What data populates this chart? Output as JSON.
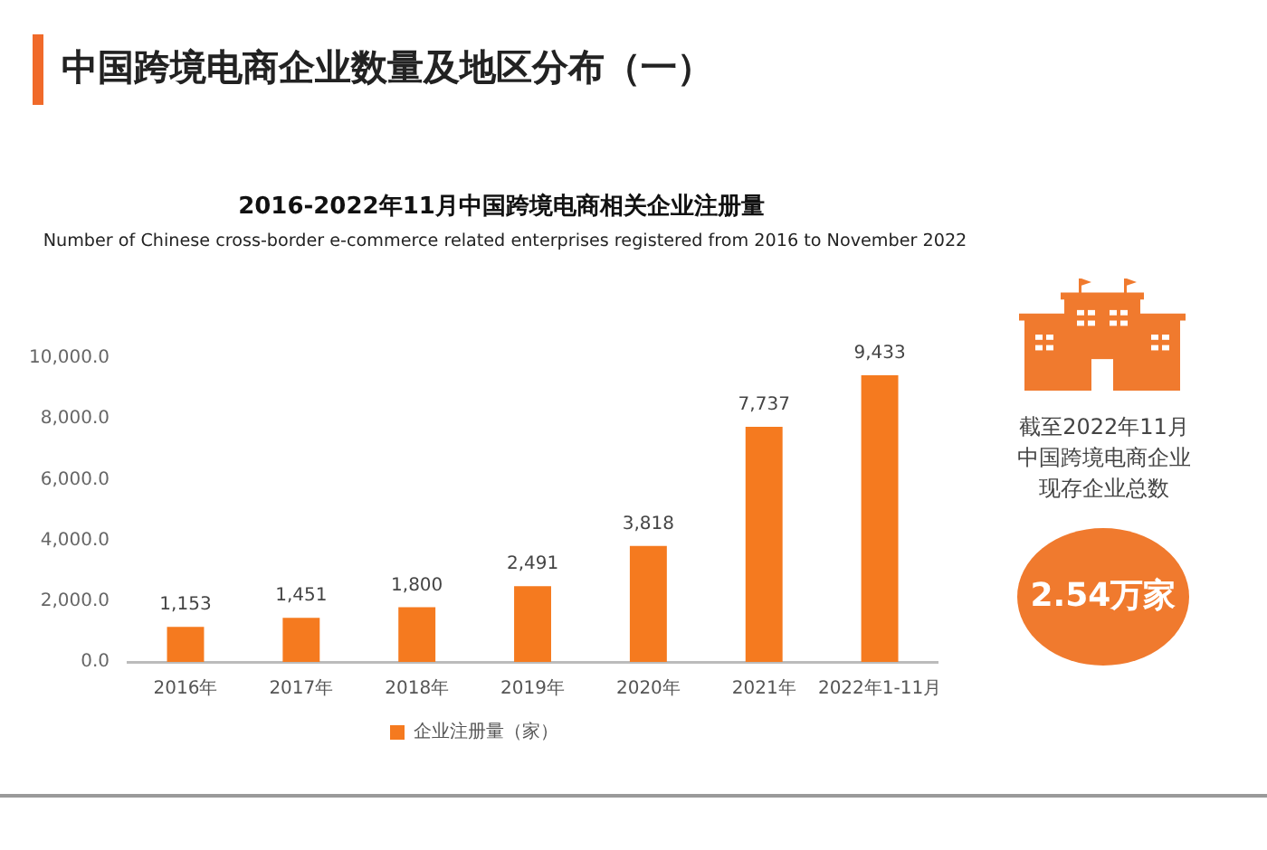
{
  "chart_data": {
    "type": "bar",
    "title": "中国跨境电商企业数量及地区分布（一）",
    "subtitle": "2016-2022年11月中国跨境电商相关企业注册量",
    "annotations": [
      "Number of Chinese cross-border e-commerce related enterprises registered from 2016 to November 2022",
      "截至2022年11月",
      "中国跨境电商企业",
      "现存企业总数",
      "2.54万家"
    ],
    "categories": [
      "2016年",
      "2017年",
      "2018年",
      "2019年",
      "2020年",
      "2021年",
      "2022年1-11月"
    ],
    "series": [
      {
        "name": "企业注册量（家）",
        "color": "#f57a1f",
        "values": [
          1153,
          1451,
          1800,
          2491,
          3818,
          7737,
          9433
        ],
        "value_labels": [
          "1,153",
          "1,451",
          "1,800",
          "2,491",
          "3,818",
          "7,737",
          "9,433"
        ]
      }
    ],
    "ylim": [
      0,
      10000
    ],
    "yticks": [
      {
        "value": 0,
        "label": "0.0"
      },
      {
        "value": 2000,
        "label": "2,000.0"
      },
      {
        "value": 4000,
        "label": "4,000.0"
      },
      {
        "value": 6000,
        "label": "6,000.0"
      },
      {
        "value": 8000,
        "label": "8,000.0"
      },
      {
        "value": 10000,
        "label": "10,000.0"
      }
    ],
    "legend": "bottom"
  }
}
